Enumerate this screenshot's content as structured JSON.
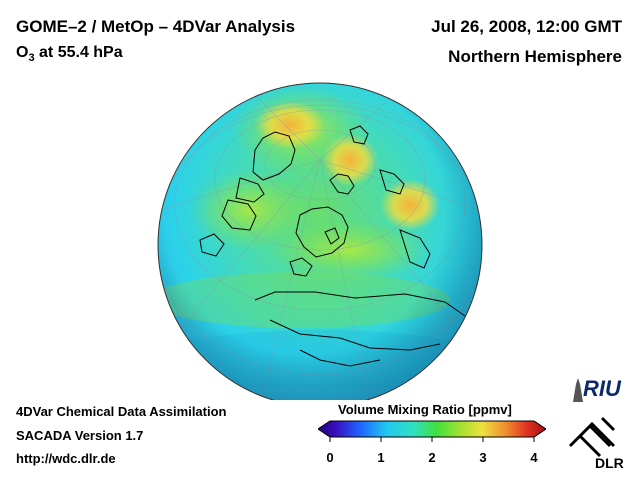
{
  "header": {
    "title": "GOME–2 / MetOp – 4DVar Analysis",
    "species_prefix": "O",
    "species_sub": "3",
    "species_suffix": " at 55.4 hPa",
    "datetime": "Jul 26, 2008, 12:00 GMT",
    "region": "Northern Hemisphere"
  },
  "footer": {
    "line1": "4DVar Chemical Data Assimilation",
    "line2": "SACADA Version 1.7",
    "line3": "http://wdc.dlr.de"
  },
  "colorbar": {
    "title": "Volume Mixing Ratio [ppmv]",
    "ticks": [
      "0",
      "1",
      "2",
      "3",
      "4"
    ],
    "min": 0,
    "max": 4
  },
  "logos": {
    "riu": "RIU",
    "dlr": "DLR"
  },
  "colors": {
    "globe_base": "#2fd6e6",
    "high_ozone": "#f0d040",
    "mid_ozone": "#7ee04a",
    "coastline": "#000000"
  }
}
